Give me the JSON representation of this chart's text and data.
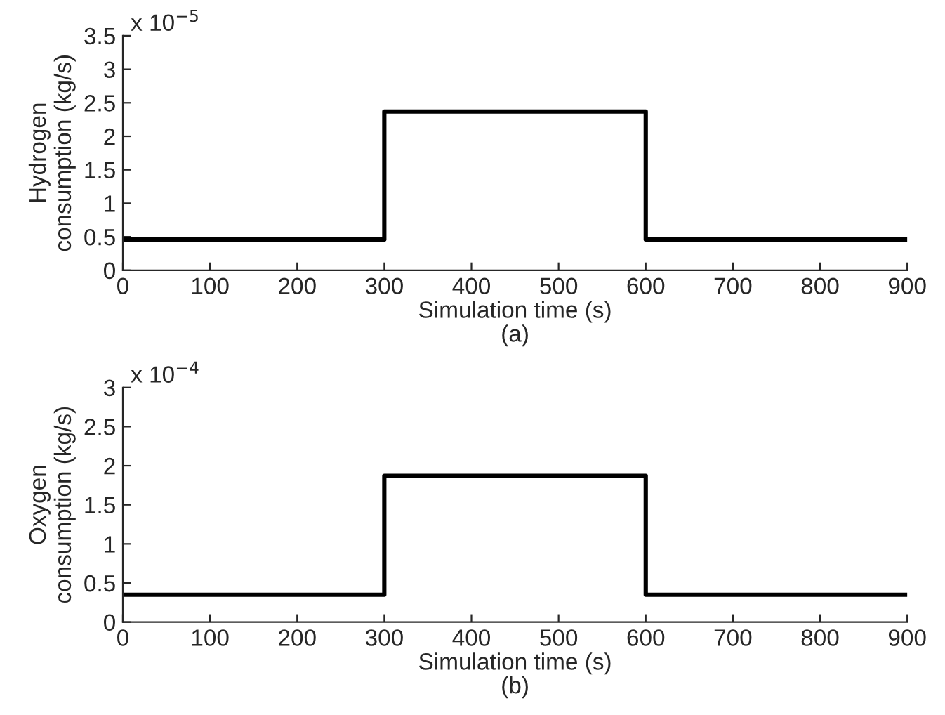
{
  "chart_data": [
    {
      "type": "line",
      "xlabel": "Simulation time (s)",
      "ylabel": "Hydrogen\nconsumption (kg/s)",
      "annotations": [
        "x 10$^{−5}$",
        "(a)"
      ],
      "x": [
        0,
        300,
        300,
        600,
        600,
        900
      ],
      "series": [
        {
          "color": "#000000",
          "values": [
            0.46,
            0.46,
            2.37,
            2.37,
            0.46,
            0.46
          ]
        }
      ],
      "xlim": [
        0,
        900
      ],
      "xticks": [
        0,
        100,
        200,
        300,
        400,
        500,
        600,
        700,
        800,
        900
      ],
      "ylim": [
        0,
        3.5
      ],
      "yticks": [
        0,
        0.5,
        1,
        1.5,
        2,
        2.5,
        3,
        3.5
      ],
      "grid": false,
      "legend": false
    },
    {
      "type": "line",
      "xlabel": "Simulation time (s)",
      "ylabel": "Oxygen\nconsumption (kg/s)",
      "annotations": [
        "x 10$^{−4}$",
        "(b)"
      ],
      "x": [
        0,
        300,
        300,
        600,
        600,
        900
      ],
      "series": [
        {
          "color": "#000000",
          "values": [
            0.35,
            0.35,
            1.87,
            1.87,
            0.35,
            0.35
          ]
        }
      ],
      "xlim": [
        0,
        900
      ],
      "xticks": [
        0,
        100,
        200,
        300,
        400,
        500,
        600,
        700,
        800,
        900
      ],
      "ylim": [
        0,
        3
      ],
      "yticks": [
        0,
        0.5,
        1,
        1.5,
        2,
        2.5,
        3
      ],
      "grid": false,
      "legend": false
    }
  ]
}
